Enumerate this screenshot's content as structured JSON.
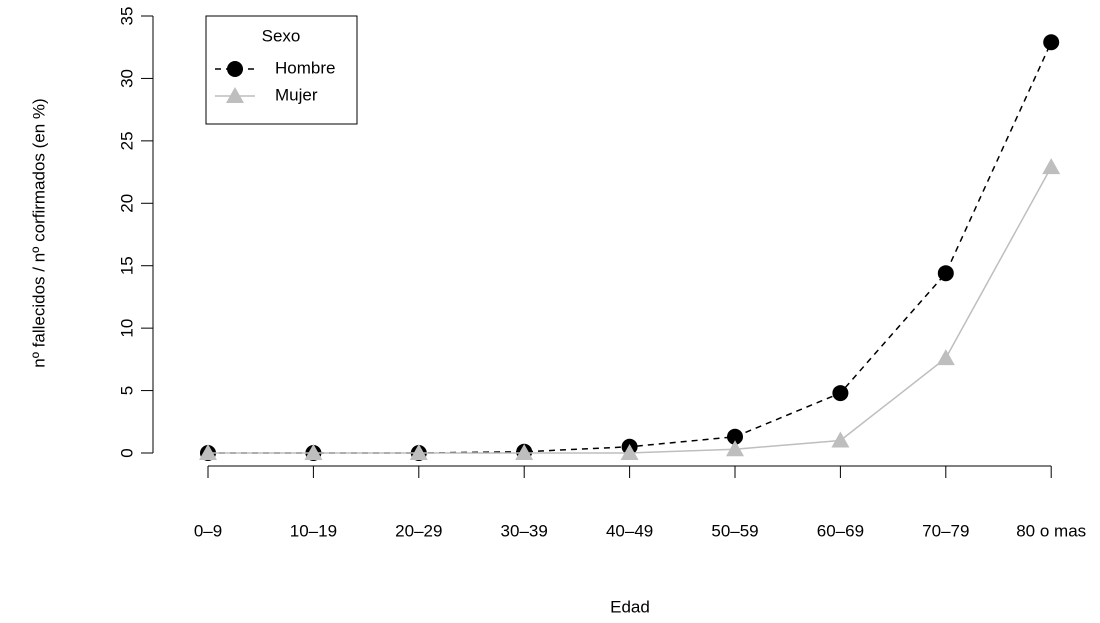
{
  "chart_data": {
    "type": "line",
    "x_label": "Edad",
    "y_label": "nº fallecidos / nº corfirmados (en %)",
    "categories": [
      "0–9",
      "10–19",
      "20–29",
      "30–39",
      "40–49",
      "50–59",
      "60–69",
      "70–79",
      "80 o mas"
    ],
    "series": [
      {
        "name": "Hombre",
        "color": "#000000",
        "linestyle": "dashed",
        "marker": "circle",
        "values": [
          0,
          0,
          0,
          0.1,
          0.5,
          1.3,
          4.8,
          14.4,
          32.9
        ]
      },
      {
        "name": "Mujer",
        "color": "#bebebe",
        "linestyle": "solid",
        "marker": "triangle",
        "values": [
          0,
          0,
          0,
          0,
          0,
          0.3,
          1.0,
          7.6,
          22.9
        ]
      }
    ],
    "ylim": [
      0,
      35
    ],
    "yticks": [
      0,
      5,
      10,
      15,
      20,
      25,
      30,
      35
    ],
    "legend_title": "Sexo",
    "legend_position": "top-left",
    "grid": false
  }
}
